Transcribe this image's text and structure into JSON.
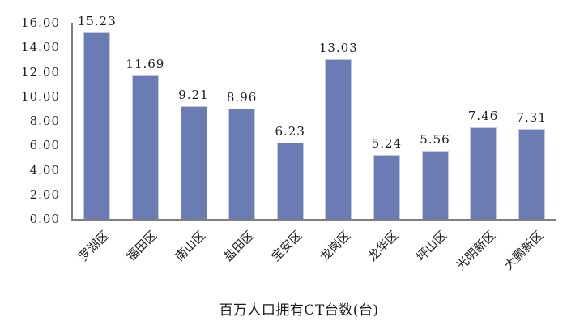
{
  "chart_data": {
    "type": "bar",
    "title": "百万人口拥有CT台数(台)",
    "categories": [
      "罗湖区",
      "福田区",
      "南山区",
      "盐田区",
      "宝安区",
      "龙岗区",
      "龙华区",
      "坪山区",
      "光明新区",
      "大鹏新区"
    ],
    "values": [
      15.23,
      11.69,
      9.21,
      8.96,
      6.23,
      13.03,
      5.24,
      5.56,
      7.46,
      7.31
    ],
    "value_labels": [
      "15.23",
      "11.69",
      "9.21",
      "8.96",
      "6.23",
      "13.03",
      "5.24",
      "5.56",
      "7.46",
      "7.31"
    ],
    "xlabel": "",
    "ylabel": "",
    "ylim": [
      0,
      16
    ],
    "y_tick_step": 2,
    "y_tick_labels": [
      "0.00",
      "2.00",
      "4.00",
      "6.00",
      "8.00",
      "10.00",
      "12.00",
      "14.00",
      "16.00"
    ],
    "grid": false,
    "legend": "none",
    "x_label_rotation_deg": 45,
    "bar_color": "#6B7CB4",
    "bar_border_color": "#C2CADF",
    "axis_color": "#7F7F7F",
    "text_color": "#1C1C1C"
  }
}
